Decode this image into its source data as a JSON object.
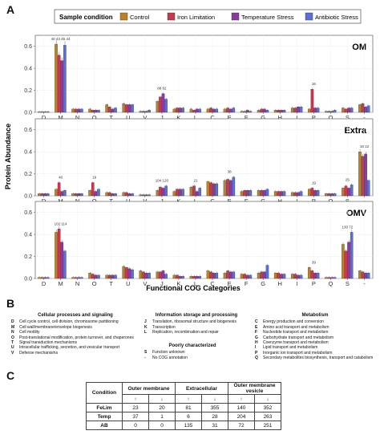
{
  "panels": {
    "a": "A",
    "b": "B",
    "c": "C"
  },
  "legend": {
    "title": "Sample condition",
    "entries": [
      {
        "label": "Control",
        "color": "#b8822c"
      },
      {
        "label": "Iron Limitation",
        "color": "#c6394f"
      },
      {
        "label": "Temperature Stress",
        "color": "#8b3aa0"
      },
      {
        "label": "Antibiotic Stress",
        "color": "#5a6fd8"
      }
    ]
  },
  "chart_data": {
    "type": "bar",
    "ylabel": "Protein Abundance",
    "xlabel": "Functional COG Categories",
    "categories": [
      "D",
      "M",
      "N",
      "O",
      "T",
      "U",
      "V",
      "J",
      "K",
      "L",
      "C",
      "E",
      "F",
      "G",
      "H",
      "I",
      "P",
      "Q",
      "S",
      "-"
    ],
    "yticks": [
      0.0,
      0.2,
      0.4,
      0.6
    ],
    "ylim": [
      0,
      0.7
    ],
    "series_names": [
      "Control",
      "Iron Limitation",
      "Temperature Stress",
      "Antibiotic Stress"
    ],
    "facets": [
      {
        "title": "OM",
        "values": [
          [
            0.005,
            0.005,
            0.005,
            0.005
          ],
          [
            0.62,
            0.52,
            0.47,
            0.61
          ],
          [
            0.03,
            0.03,
            0.03,
            0.03
          ],
          [
            0.03,
            0.02,
            0.02,
            0.02
          ],
          [
            0.07,
            0.05,
            0.03,
            0.04
          ],
          [
            0.08,
            0.07,
            0.07,
            0.07
          ],
          [
            0.01,
            0.01,
            0.01,
            0.02
          ],
          [
            0.1,
            0.14,
            0.17,
            0.12
          ],
          [
            0.03,
            0.04,
            0.04,
            0.04
          ],
          [
            0.03,
            0.02,
            0.03,
            0.03
          ],
          [
            0.03,
            0.04,
            0.03,
            0.03
          ],
          [
            0.03,
            0.04,
            0.03,
            0.04
          ],
          [
            0.01,
            0.01,
            0.02,
            0.01
          ],
          [
            0.02,
            0.03,
            0.03,
            0.02
          ],
          [
            0.02,
            0.02,
            0.02,
            0.02
          ],
          [
            0.04,
            0.04,
            0.05,
            0.05
          ],
          [
            0.03,
            0.21,
            0.04,
            0.04
          ],
          [
            0.01,
            0.01,
            0.01,
            0.02
          ],
          [
            0.04,
            0.03,
            0.04,
            0.04
          ],
          [
            0.07,
            0.08,
            0.05,
            0.06
          ]
        ],
        "labels": [
          "",
          "40 43 45 44",
          "",
          "",
          "",
          "",
          "",
          "88 82",
          "",
          "",
          "",
          "",
          "",
          "",
          "",
          "",
          "16",
          "",
          "",
          ""
        ]
      },
      {
        "title": "Extra",
        "values": [
          [
            0.02,
            0.02,
            0.02,
            0.02
          ],
          [
            0.06,
            0.12,
            0.04,
            0.05
          ],
          [
            0.02,
            0.02,
            0.02,
            0.02
          ],
          [
            0.05,
            0.12,
            0.04,
            0.06
          ],
          [
            0.03,
            0.03,
            0.02,
            0.02
          ],
          [
            0.03,
            0.03,
            0.02,
            0.02
          ],
          [
            0.01,
            0.01,
            0.01,
            0.01
          ],
          [
            0.05,
            0.08,
            0.07,
            0.09
          ],
          [
            0.04,
            0.06,
            0.06,
            0.06
          ],
          [
            0.08,
            0.09,
            0.04,
            0.07
          ],
          [
            0.13,
            0.12,
            0.11,
            0.11
          ],
          [
            0.14,
            0.15,
            0.14,
            0.17
          ],
          [
            0.04,
            0.05,
            0.05,
            0.05
          ],
          [
            0.05,
            0.05,
            0.05,
            0.06
          ],
          [
            0.04,
            0.04,
            0.04,
            0.04
          ],
          [
            0.03,
            0.03,
            0.03,
            0.04
          ],
          [
            0.06,
            0.07,
            0.05,
            0.05
          ],
          [
            0.02,
            0.02,
            0.02,
            0.02
          ],
          [
            0.07,
            0.09,
            0.07,
            0.1
          ],
          [
            0.4,
            0.36,
            0.38,
            0.14
          ]
        ],
        "labels": [
          "",
          "40",
          "",
          "19",
          "",
          "",
          "",
          "104 120",
          "",
          "21",
          "",
          "38",
          "",
          "",
          "",
          "",
          "19",
          "",
          "25",
          "18 12"
        ]
      },
      {
        "title": "OMV",
        "values": [
          [
            0.01,
            0.01,
            0.01,
            0.01
          ],
          [
            0.42,
            0.45,
            0.33,
            0.25
          ],
          [
            0.01,
            0.01,
            0.01,
            0.01
          ],
          [
            0.05,
            0.04,
            0.03,
            0.03
          ],
          [
            0.03,
            0.03,
            0.03,
            0.03
          ],
          [
            0.11,
            0.1,
            0.09,
            0.08
          ],
          [
            0.07,
            0.06,
            0.05,
            0.05
          ],
          [
            0.06,
            0.06,
            0.07,
            0.04
          ],
          [
            0.03,
            0.03,
            0.02,
            0.02
          ],
          [
            0.02,
            0.02,
            0.02,
            0.02
          ],
          [
            0.07,
            0.06,
            0.05,
            0.05
          ],
          [
            0.05,
            0.07,
            0.06,
            0.06
          ],
          [
            0.04,
            0.04,
            0.03,
            0.03
          ],
          [
            0.05,
            0.06,
            0.06,
            0.12
          ],
          [
            0.05,
            0.05,
            0.04,
            0.04
          ],
          [
            0.04,
            0.04,
            0.03,
            0.03
          ],
          [
            0.1,
            0.07,
            0.05,
            0.05
          ],
          [
            0.01,
            0.01,
            0.01,
            0.01
          ],
          [
            0.31,
            0.25,
            0.33,
            0.42
          ],
          [
            0.07,
            0.06,
            0.05,
            0.05
          ]
        ],
        "labels": [
          "",
          "102 114",
          "",
          "",
          "",
          "",
          "",
          "",
          "",
          "",
          "",
          "",
          "",
          "",
          "",
          "",
          "39",
          "",
          "130 72",
          ""
        ]
      }
    ]
  },
  "cog_legend": {
    "cellular": {
      "title": "Cellular processes and signaling",
      "items": [
        {
          "code": "D",
          "text": "Cell cycle control, cell division, chromosome partitioning"
        },
        {
          "code": "M",
          "text": "Cell wall/membrane/envelope biogenesis"
        },
        {
          "code": "N",
          "text": "Cell motility"
        },
        {
          "code": "O",
          "text": "Post-translational modification, protein turnover, and chaperones"
        },
        {
          "code": "T",
          "text": "Signal transduction mechanisms"
        },
        {
          "code": "U",
          "text": "Intracellular trafficking, secretion, and vesicular transport"
        },
        {
          "code": "V",
          "text": "Defense mechanisms"
        }
      ]
    },
    "information": {
      "title": "Information storage and processing",
      "items": [
        {
          "code": "J",
          "text": "Translation, ribosomal structure and biogenesis"
        },
        {
          "code": "K",
          "text": "Transcription"
        },
        {
          "code": "L",
          "text": "Replication, recombination and repair"
        }
      ]
    },
    "poorly": {
      "title": "Poorly characterized",
      "items": [
        {
          "code": "S",
          "text": "Function unknown"
        },
        {
          "code": "-",
          "text": "No COG annotation"
        }
      ]
    },
    "metabolism": {
      "title": "Metabolism",
      "items": [
        {
          "code": "C",
          "text": "Energy production and conversion"
        },
        {
          "code": "E",
          "text": "Amino acid transport and metabolism"
        },
        {
          "code": "F",
          "text": "Nucleotide transport and metabolism"
        },
        {
          "code": "G",
          "text": "Carbohydrate transport and metabolism"
        },
        {
          "code": "H",
          "text": "Coenzyme transport and metabolism"
        },
        {
          "code": "I",
          "text": "Lipid transport and metabolism"
        },
        {
          "code": "P",
          "text": "Inorganic ion transport and metabolism"
        },
        {
          "code": "Q",
          "text": "Secondary metabolites biosynthesis, transport and catabolism"
        }
      ]
    }
  },
  "table": {
    "header_condition": "Condition",
    "groups": [
      "Outer membrane",
      "Extracellular",
      "Outer membrane vesicle"
    ],
    "up_arrow": "↑",
    "down_arrow": "↓",
    "rows": [
      {
        "cond": "FeLim",
        "vals": [
          "23",
          "20",
          "81",
          "355",
          "140",
          "352"
        ]
      },
      {
        "cond": "Temp",
        "vals": [
          "37",
          "1",
          "6",
          "28",
          "204",
          "263"
        ]
      },
      {
        "cond": "AB",
        "vals": [
          "0",
          "0",
          "135",
          "31",
          "72",
          "251"
        ]
      }
    ]
  }
}
